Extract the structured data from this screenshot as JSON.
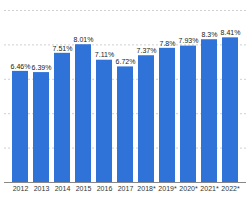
{
  "chart_data": {
    "type": "bar",
    "categories": [
      "2012",
      "2013",
      "2014",
      "2015",
      "2016",
      "2017",
      "2018*",
      "2019*",
      "2020*",
      "2021*",
      "2022*"
    ],
    "values": [
      6.46,
      6.39,
      7.51,
      8.01,
      7.11,
      6.72,
      7.37,
      7.8,
      7.93,
      8.3,
      8.41
    ],
    "value_labels": [
      "6.46%",
      "6.39%",
      "7.51%",
      "8.01%",
      "7.11%",
      "6.72%",
      "7.37%",
      "7.8%",
      "7.93%",
      "8.3%",
      "8.41%"
    ],
    "data_labels": true,
    "color": "#2f72d8",
    "ylim": [
      0,
      10
    ],
    "yticks": [
      0,
      2,
      4,
      6,
      8,
      10
    ],
    "grid": true,
    "tick_labels": "x"
  }
}
